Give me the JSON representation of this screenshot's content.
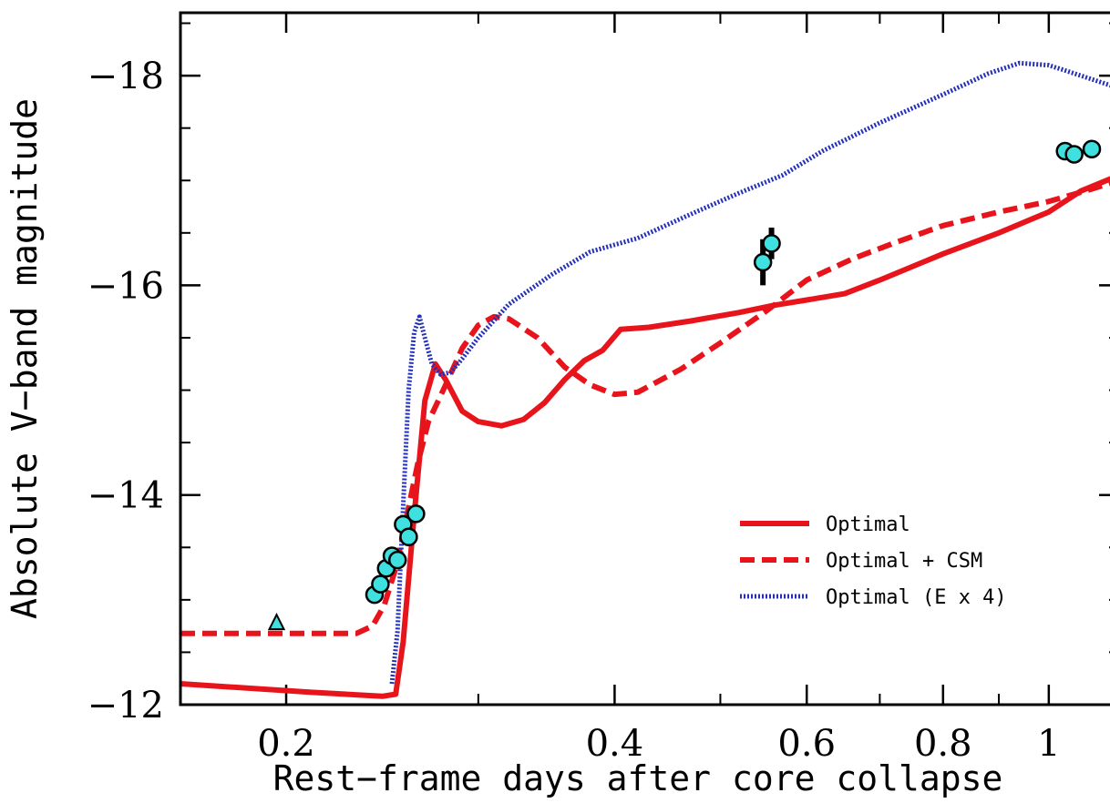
{
  "chart_data": {
    "type": "line",
    "xlabel": "Rest−frame days after core collapse",
    "ylabel": "Absolute V−band magnitude",
    "x_scale": "log",
    "xlim": [
      0.16,
      1.16
    ],
    "ylim": [
      -12,
      -18.6
    ],
    "y_inverted": true,
    "x_ticks": [
      {
        "value": 0.2,
        "label": "0.2"
      },
      {
        "value": 0.4,
        "label": "0.4"
      },
      {
        "value": 0.6,
        "label": "0.6"
      },
      {
        "value": 0.8,
        "label": "0.8"
      },
      {
        "value": 1.0,
        "label": "1"
      }
    ],
    "y_ticks": [
      {
        "value": -12,
        "label": "−12"
      },
      {
        "value": -14,
        "label": "−14"
      },
      {
        "value": -16,
        "label": "−16"
      },
      {
        "value": -18,
        "label": "−18"
      }
    ],
    "legend_position": "lower-right",
    "series": [
      {
        "name": "Optimal",
        "style": "solid",
        "color": "#e8141c",
        "points": [
          [
            0.16,
            -12.2
          ],
          [
            0.21,
            -12.12
          ],
          [
            0.245,
            -12.08
          ],
          [
            0.252,
            -12.1
          ],
          [
            0.256,
            -12.6
          ],
          [
            0.262,
            -13.8
          ],
          [
            0.268,
            -14.9
          ],
          [
            0.274,
            -15.25
          ],
          [
            0.28,
            -15.1
          ],
          [
            0.29,
            -14.8
          ],
          [
            0.3,
            -14.7
          ],
          [
            0.315,
            -14.66
          ],
          [
            0.33,
            -14.72
          ],
          [
            0.345,
            -14.88
          ],
          [
            0.36,
            -15.1
          ],
          [
            0.375,
            -15.28
          ],
          [
            0.39,
            -15.38
          ],
          [
            0.405,
            -15.58
          ],
          [
            0.43,
            -15.6
          ],
          [
            0.47,
            -15.66
          ],
          [
            0.52,
            -15.74
          ],
          [
            0.56,
            -15.81
          ],
          [
            0.6,
            -15.86
          ],
          [
            0.65,
            -15.92
          ],
          [
            0.7,
            -16.05
          ],
          [
            0.8,
            -16.3
          ],
          [
            0.9,
            -16.5
          ],
          [
            1.0,
            -16.7
          ],
          [
            1.07,
            -16.9
          ],
          [
            1.16,
            -17.05
          ]
        ]
      },
      {
        "name": "Optimal + CSM",
        "style": "dashed",
        "color": "#e8141c",
        "points": [
          [
            0.16,
            -12.68
          ],
          [
            0.2,
            -12.68
          ],
          [
            0.232,
            -12.68
          ],
          [
            0.24,
            -12.75
          ],
          [
            0.246,
            -12.95
          ],
          [
            0.252,
            -13.3
          ],
          [
            0.258,
            -13.8
          ],
          [
            0.264,
            -14.3
          ],
          [
            0.27,
            -14.7
          ],
          [
            0.28,
            -15.05
          ],
          [
            0.29,
            -15.4
          ],
          [
            0.3,
            -15.62
          ],
          [
            0.31,
            -15.7
          ],
          [
            0.32,
            -15.68
          ],
          [
            0.34,
            -15.5
          ],
          [
            0.36,
            -15.22
          ],
          [
            0.38,
            -15.05
          ],
          [
            0.4,
            -14.96
          ],
          [
            0.42,
            -14.98
          ],
          [
            0.46,
            -15.2
          ],
          [
            0.5,
            -15.45
          ],
          [
            0.55,
            -15.75
          ],
          [
            0.6,
            -16.05
          ],
          [
            0.66,
            -16.25
          ],
          [
            0.72,
            -16.4
          ],
          [
            0.8,
            -16.57
          ],
          [
            0.9,
            -16.7
          ],
          [
            1.0,
            -16.8
          ],
          [
            1.08,
            -16.9
          ],
          [
            1.16,
            -17.0
          ]
        ]
      },
      {
        "name": "Optimal (E x 4)",
        "style": "dotted",
        "color": "#2430b8",
        "points": [
          [
            0.25,
            -12.2
          ],
          [
            0.253,
            -12.7
          ],
          [
            0.256,
            -13.9
          ],
          [
            0.259,
            -15.0
          ],
          [
            0.262,
            -15.55
          ],
          [
            0.265,
            -15.7
          ],
          [
            0.268,
            -15.5
          ],
          [
            0.272,
            -15.25
          ],
          [
            0.277,
            -15.15
          ],
          [
            0.283,
            -15.17
          ],
          [
            0.29,
            -15.3
          ],
          [
            0.3,
            -15.5
          ],
          [
            0.32,
            -15.82
          ],
          [
            0.35,
            -16.1
          ],
          [
            0.38,
            -16.32
          ],
          [
            0.42,
            -16.45
          ],
          [
            0.47,
            -16.68
          ],
          [
            0.52,
            -16.88
          ],
          [
            0.57,
            -17.05
          ],
          [
            0.62,
            -17.28
          ],
          [
            0.7,
            -17.55
          ],
          [
            0.8,
            -17.82
          ],
          [
            0.88,
            -18.02
          ],
          [
            0.94,
            -18.12
          ],
          [
            1.0,
            -18.1
          ],
          [
            1.07,
            -18.0
          ],
          [
            1.16,
            -17.88
          ]
        ]
      }
    ],
    "observations": {
      "color": "#3ee0e0",
      "points": [
        {
          "x": 0.241,
          "y": -13.05,
          "err": 0.05
        },
        {
          "x": 0.244,
          "y": -13.15,
          "err": 0.05
        },
        {
          "x": 0.247,
          "y": -13.3,
          "err": 0.05
        },
        {
          "x": 0.25,
          "y": -13.42,
          "err": 0.05
        },
        {
          "x": 0.253,
          "y": -13.38,
          "err": 0.05
        },
        {
          "x": 0.256,
          "y": -13.72,
          "err": 0.05
        },
        {
          "x": 0.259,
          "y": -13.6,
          "err": 0.05
        },
        {
          "x": 0.263,
          "y": -13.82,
          "err": 0.05
        },
        {
          "x": 0.547,
          "y": -16.22,
          "err": 0.22
        },
        {
          "x": 0.557,
          "y": -16.4,
          "err": 0.15
        },
        {
          "x": 1.035,
          "y": -17.28,
          "err": 0.0
        },
        {
          "x": 1.055,
          "y": -17.25,
          "err": 0.0
        },
        {
          "x": 1.095,
          "y": -17.3,
          "err": 0.0
        }
      ],
      "upper_limits": [
        {
          "x": 0.196,
          "y": -12.78
        }
      ]
    }
  }
}
